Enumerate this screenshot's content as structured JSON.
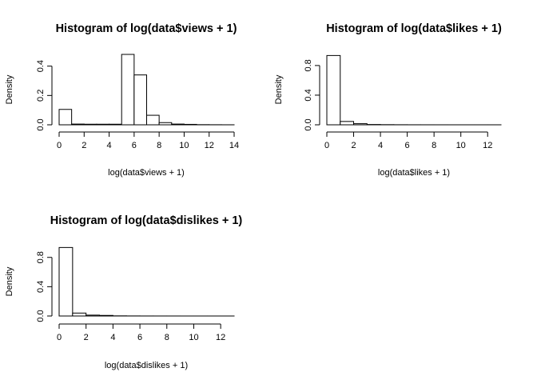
{
  "chart_data": [
    {
      "type": "bar",
      "title": "Histogram of log(data$views + 1)",
      "xlabel": "log(data$views + 1)",
      "ylabel": "Density",
      "bin_edges": [
        0,
        1,
        2,
        3,
        4,
        5,
        6,
        7,
        8,
        9,
        10,
        11,
        12,
        13,
        14
      ],
      "values": [
        0.105,
        0.005,
        0.004,
        0.004,
        0.004,
        0.48,
        0.34,
        0.065,
        0.015,
        0.005,
        0.003,
        0.001,
        0.0005,
        0.0002
      ],
      "xticks": [
        "0",
        "2",
        "4",
        "6",
        "8",
        "10",
        "12",
        "14"
      ],
      "yticks": [
        "0.0",
        "0.2",
        "0.4"
      ],
      "xlim": [
        0,
        14
      ],
      "ylim": [
        0,
        0.48
      ]
    },
    {
      "type": "bar",
      "title": "Histogram of log(data$likes + 1)",
      "xlabel": "log(data$likes + 1)",
      "ylabel": "Density",
      "bin_edges": [
        0,
        1,
        2,
        3,
        4,
        5,
        6,
        7,
        8,
        9,
        10,
        11,
        12,
        13
      ],
      "values": [
        0.935,
        0.045,
        0.015,
        0.004,
        0.002,
        0.001,
        0.0005,
        0.0003,
        0.0002,
        0.0001,
        0.0001,
        0.0001,
        0.0001
      ],
      "xticks": [
        "0",
        "2",
        "4",
        "6",
        "8",
        "10",
        "12"
      ],
      "yticks": [
        "0.0",
        "0.4",
        "0.8"
      ],
      "xlim": [
        0,
        13
      ],
      "ylim": [
        0,
        0.95
      ]
    },
    {
      "type": "bar",
      "title": "Histogram of log(data$dislikes + 1)",
      "xlabel": "log(data$dislikes + 1)",
      "ylabel": "Density",
      "bin_edges": [
        0,
        1,
        2,
        3,
        4,
        5,
        6,
        7,
        8,
        9,
        10,
        11,
        12,
        13
      ],
      "values": [
        0.935,
        0.04,
        0.012,
        0.008,
        0.002,
        0.001,
        0.0005,
        0.0003,
        0.0002,
        0.0001,
        0.0001,
        0.0001,
        0.0001
      ],
      "xticks": [
        "0",
        "2",
        "4",
        "6",
        "8",
        "10",
        "12"
      ],
      "yticks": [
        "0.0",
        "0.4",
        "0.8"
      ],
      "xlim": [
        0,
        13
      ],
      "ylim": [
        0,
        0.95
      ]
    }
  ]
}
